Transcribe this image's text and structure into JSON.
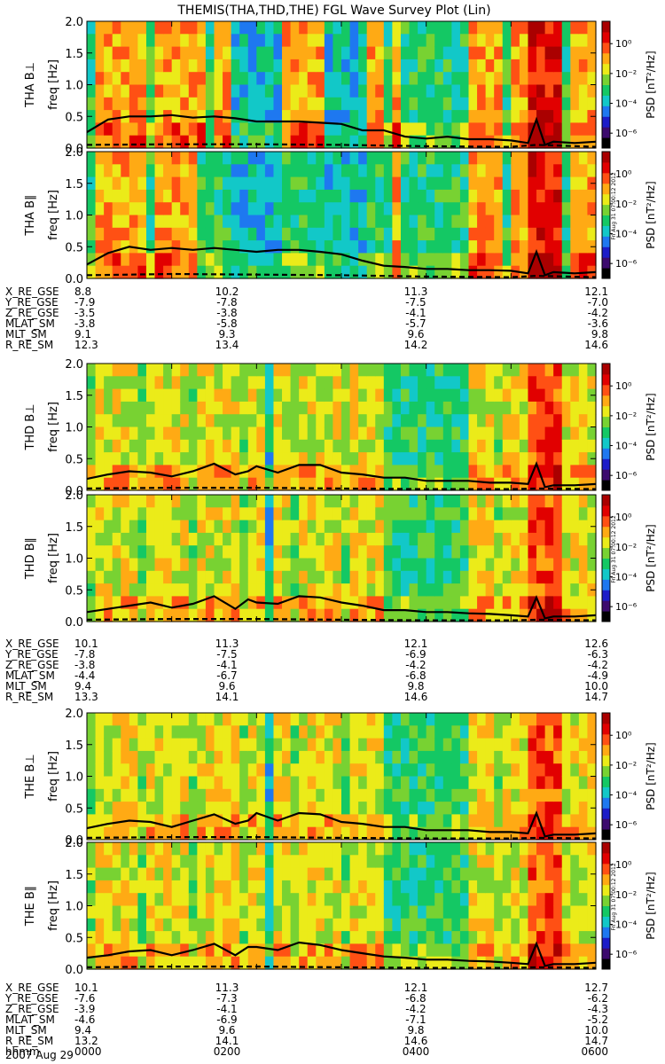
{
  "title": "THEMIS(THA,THD,THE) FGL Wave Survey Plot (Lin)",
  "stamp": "Fri Aug 31 07:00:12 2012",
  "colorbar": {
    "label": "PSD [nT²/Hz]",
    "ticks": [
      {
        "exp": 0,
        "text": "10⁰"
      },
      {
        "exp": -2,
        "text": "10⁻²"
      },
      {
        "exp": -4,
        "text": "10⁻⁴"
      },
      {
        "exp": -6,
        "text": "10⁻⁶"
      }
    ],
    "range_exp": [
      -7,
      1.5
    ],
    "colors": [
      "#000000",
      "#3c0a6e",
      "#1c1cc8",
      "#1e78f0",
      "#12c8c8",
      "#14c864",
      "#78d232",
      "#ebeb19",
      "#ffaa14",
      "#ff5014",
      "#e10000",
      "#aa0000"
    ]
  },
  "chart_data": [
    {
      "type": "heatmap",
      "probe": "THA",
      "component": "B⊥",
      "ylabel": "THA B⊥",
      "yunit": "freq [Hz]",
      "yticks": [
        "0.0",
        "0.5",
        "1.0",
        "1.5",
        "2.0"
      ],
      "ylim": [
        0,
        2.0
      ],
      "xlim_hhmm": [
        "0000",
        "0600"
      ],
      "series": [
        {
          "name": "f_cp",
          "style": "solid",
          "x_hours": [
            0,
            0.25,
            0.5,
            0.75,
            1.0,
            1.25,
            1.5,
            1.75,
            2.0,
            2.25,
            2.5,
            2.75,
            3.0,
            3.25,
            3.5,
            3.75,
            4.0,
            4.25,
            4.5,
            4.75,
            5.0,
            5.2,
            5.3,
            5.4,
            5.5,
            5.75,
            6.0
          ],
          "y_hz": [
            0.25,
            0.45,
            0.5,
            0.5,
            0.52,
            0.48,
            0.5,
            0.47,
            0.42,
            0.42,
            0.42,
            0.4,
            0.38,
            0.28,
            0.28,
            0.18,
            0.15,
            0.18,
            0.14,
            0.14,
            0.12,
            0.08,
            0.45,
            0.05,
            0.1,
            0.08,
            0.1
          ]
        },
        {
          "name": "f_lh",
          "style": "dashed",
          "x_hours": [
            0,
            1,
            2,
            3,
            4,
            5,
            5.3,
            6
          ],
          "y_hz": [
            0.05,
            0.06,
            0.06,
            0.05,
            0.03,
            0.02,
            0.05,
            0.02
          ]
        }
      ]
    },
    {
      "type": "heatmap",
      "probe": "THA",
      "component": "B∥",
      "ylabel": "THA B∥",
      "yunit": "freq [Hz]",
      "yticks": [
        "0.0",
        "0.5",
        "1.0",
        "1.5",
        "2.0"
      ],
      "ylim": [
        0,
        2.0
      ],
      "xlim_hhmm": [
        "0000",
        "0600"
      ],
      "series": [
        {
          "name": "f_cp",
          "style": "solid",
          "x_hours": [
            0,
            0.25,
            0.5,
            0.75,
            1.0,
            1.25,
            1.5,
            1.75,
            2.0,
            2.25,
            2.5,
            2.75,
            3.0,
            3.25,
            3.5,
            3.75,
            4.0,
            4.25,
            4.5,
            4.75,
            5.0,
            5.2,
            5.3,
            5.4,
            5.5,
            5.75,
            6.0
          ],
          "y_hz": [
            0.22,
            0.4,
            0.5,
            0.45,
            0.48,
            0.45,
            0.48,
            0.45,
            0.42,
            0.45,
            0.45,
            0.42,
            0.38,
            0.28,
            0.2,
            0.18,
            0.15,
            0.15,
            0.13,
            0.13,
            0.12,
            0.08,
            0.42,
            0.05,
            0.1,
            0.08,
            0.1
          ]
        },
        {
          "name": "f_lh",
          "style": "dashed",
          "x_hours": [
            0,
            1,
            2,
            3,
            4,
            5,
            5.3,
            6
          ],
          "y_hz": [
            0.05,
            0.07,
            0.06,
            0.05,
            0.03,
            0.02,
            0.04,
            0.02
          ]
        }
      ]
    },
    {
      "type": "heatmap",
      "probe": "THD",
      "component": "B⊥",
      "ylabel": "THD B⊥",
      "yunit": "freq [Hz]",
      "yticks": [
        "0.0",
        "0.5",
        "1.0",
        "1.5",
        "2.0"
      ],
      "ylim": [
        0,
        2.0
      ],
      "xlim_hhmm": [
        "0000",
        "0600"
      ],
      "series": [
        {
          "name": "f_cp",
          "style": "solid",
          "x_hours": [
            0,
            0.25,
            0.5,
            0.75,
            1.0,
            1.25,
            1.5,
            1.75,
            1.9,
            2.0,
            2.25,
            2.5,
            2.75,
            3.0,
            3.25,
            3.5,
            3.75,
            4.0,
            4.25,
            4.5,
            4.75,
            5.0,
            5.2,
            5.3,
            5.4,
            5.5,
            5.75,
            6.0
          ],
          "y_hz": [
            0.18,
            0.25,
            0.3,
            0.28,
            0.22,
            0.3,
            0.42,
            0.25,
            0.3,
            0.38,
            0.28,
            0.4,
            0.4,
            0.28,
            0.25,
            0.2,
            0.2,
            0.15,
            0.15,
            0.15,
            0.12,
            0.12,
            0.1,
            0.42,
            0.05,
            0.08,
            0.08,
            0.1
          ]
        },
        {
          "name": "f_lh",
          "style": "dashed",
          "x_hours": [
            0,
            1,
            2,
            3,
            4,
            5,
            5.3,
            6
          ],
          "y_hz": [
            0.03,
            0.04,
            0.04,
            0.03,
            0.02,
            0.02,
            0.03,
            0.02
          ]
        }
      ]
    },
    {
      "type": "heatmap",
      "probe": "THD",
      "component": "B∥",
      "ylabel": "THD B∥",
      "yunit": "freq [Hz]",
      "yticks": [
        "0.0",
        "0.5",
        "1.0",
        "1.5",
        "2.0"
      ],
      "ylim": [
        0,
        2.0
      ],
      "xlim_hhmm": [
        "0000",
        "0600"
      ],
      "series": [
        {
          "name": "f_cp",
          "style": "solid",
          "x_hours": [
            0,
            0.25,
            0.5,
            0.75,
            1.0,
            1.25,
            1.5,
            1.75,
            1.9,
            2.0,
            2.25,
            2.5,
            2.75,
            3.0,
            3.25,
            3.5,
            3.75,
            4.0,
            4.25,
            4.5,
            4.75,
            5.0,
            5.2,
            5.3,
            5.4,
            5.5,
            5.75,
            6.0
          ],
          "y_hz": [
            0.15,
            0.2,
            0.25,
            0.3,
            0.22,
            0.28,
            0.4,
            0.2,
            0.35,
            0.3,
            0.28,
            0.4,
            0.38,
            0.3,
            0.25,
            0.18,
            0.18,
            0.15,
            0.15,
            0.13,
            0.12,
            0.1,
            0.08,
            0.38,
            0.05,
            0.08,
            0.08,
            0.1
          ]
        },
        {
          "name": "f_lh",
          "style": "dashed",
          "x_hours": [
            0,
            1,
            2,
            3,
            4,
            5,
            5.3,
            6
          ],
          "y_hz": [
            0.03,
            0.04,
            0.04,
            0.03,
            0.02,
            0.02,
            0.03,
            0.02
          ]
        }
      ]
    },
    {
      "type": "heatmap",
      "probe": "THE",
      "component": "B⊥",
      "ylabel": "THE B⊥",
      "yunit": "freq [Hz]",
      "yticks": [
        "0.0",
        "0.5",
        "1.0",
        "1.5",
        "2.0"
      ],
      "ylim": [
        0,
        2.0
      ],
      "xlim_hhmm": [
        "0000",
        "0600"
      ],
      "series": [
        {
          "name": "f_cp",
          "style": "solid",
          "x_hours": [
            0,
            0.25,
            0.5,
            0.75,
            1.0,
            1.25,
            1.5,
            1.75,
            1.9,
            2.0,
            2.25,
            2.5,
            2.75,
            3.0,
            3.25,
            3.5,
            3.75,
            4.0,
            4.25,
            4.5,
            4.75,
            5.0,
            5.2,
            5.3,
            5.4,
            5.5,
            5.75,
            6.0
          ],
          "y_hz": [
            0.18,
            0.25,
            0.3,
            0.28,
            0.2,
            0.3,
            0.4,
            0.25,
            0.3,
            0.42,
            0.3,
            0.42,
            0.4,
            0.28,
            0.25,
            0.2,
            0.2,
            0.15,
            0.15,
            0.15,
            0.12,
            0.12,
            0.1,
            0.42,
            0.05,
            0.08,
            0.08,
            0.1
          ]
        },
        {
          "name": "f_lh",
          "style": "dashed",
          "x_hours": [
            0,
            1,
            2,
            3,
            4,
            5,
            5.3,
            6
          ],
          "y_hz": [
            0.03,
            0.04,
            0.04,
            0.03,
            0.02,
            0.02,
            0.03,
            0.02
          ]
        }
      ]
    },
    {
      "type": "heatmap",
      "probe": "THE",
      "component": "B∥",
      "ylabel": "THE B∥",
      "yunit": "freq [Hz]",
      "yticks": [
        "0.0",
        "0.5",
        "1.0",
        "1.5",
        "2.0"
      ],
      "ylim": [
        0,
        2.0
      ],
      "xlim_hhmm": [
        "0000",
        "0600"
      ],
      "series": [
        {
          "name": "f_cp",
          "style": "solid",
          "x_hours": [
            0,
            0.25,
            0.5,
            0.75,
            1.0,
            1.25,
            1.5,
            1.75,
            1.9,
            2.0,
            2.25,
            2.5,
            2.75,
            3.0,
            3.25,
            3.5,
            3.75,
            4.0,
            4.25,
            4.5,
            4.75,
            5.0,
            5.2,
            5.3,
            5.4,
            5.5,
            5.75,
            6.0
          ],
          "y_hz": [
            0.18,
            0.22,
            0.28,
            0.3,
            0.22,
            0.3,
            0.4,
            0.22,
            0.35,
            0.35,
            0.3,
            0.42,
            0.38,
            0.3,
            0.25,
            0.2,
            0.18,
            0.15,
            0.15,
            0.13,
            0.12,
            0.1,
            0.08,
            0.4,
            0.05,
            0.08,
            0.08,
            0.1
          ]
        },
        {
          "name": "f_lh",
          "style": "dashed",
          "x_hours": [
            0,
            1,
            2,
            3,
            4,
            5,
            5.3,
            6
          ],
          "y_hz": [
            0.03,
            0.04,
            0.04,
            0.03,
            0.02,
            0.02,
            0.03,
            0.02
          ]
        }
      ]
    }
  ],
  "orbit_tables": [
    {
      "probe": "THA",
      "rows": [
        {
          "label": "X_RE_GSE",
          "values": [
            "8.8",
            "10.2",
            "11.3",
            "12.1"
          ]
        },
        {
          "label": "Y_RE_GSE",
          "values": [
            "-7.9",
            "-7.8",
            "-7.5",
            "-7.0"
          ]
        },
        {
          "label": "Z_RE_GSE",
          "values": [
            "-3.5",
            "-3.8",
            "-4.1",
            "-4.2"
          ]
        },
        {
          "label": "MLAT_SM",
          "values": [
            "-3.8",
            "-5.8",
            "-5.7",
            "-3.6"
          ]
        },
        {
          "label": "MLT_SM",
          "values": [
            "9.1",
            "9.3",
            "9.6",
            "9.8"
          ]
        },
        {
          "label": "R_RE_SM",
          "values": [
            "12.3",
            "13.4",
            "14.2",
            "14.6"
          ]
        }
      ]
    },
    {
      "probe": "THD",
      "rows": [
        {
          "label": "X_RE_GSE",
          "values": [
            "10.1",
            "11.3",
            "12.1",
            "12.6"
          ]
        },
        {
          "label": "Y_RE_GSE",
          "values": [
            "-7.8",
            "-7.5",
            "-6.9",
            "-6.3"
          ]
        },
        {
          "label": "Z_RE_GSE",
          "values": [
            "-3.8",
            "-4.1",
            "-4.2",
            "-4.2"
          ]
        },
        {
          "label": "MLAT_SM",
          "values": [
            "-4.4",
            "-6.7",
            "-6.8",
            "-4.9"
          ]
        },
        {
          "label": "MLT_SM",
          "values": [
            "9.4",
            "9.6",
            "9.8",
            "10.0"
          ]
        },
        {
          "label": "R_RE_SM",
          "values": [
            "13.3",
            "14.1",
            "14.6",
            "14.7"
          ]
        }
      ]
    },
    {
      "probe": "THE",
      "rows": [
        {
          "label": "X_RE_GSE",
          "values": [
            "10.1",
            "11.3",
            "12.1",
            "12.7"
          ]
        },
        {
          "label": "Y_RE_GSE",
          "values": [
            "-7.6",
            "-7.3",
            "-6.8",
            "-6.2"
          ]
        },
        {
          "label": "Z_RE_GSE",
          "values": [
            "-3.9",
            "-4.1",
            "-4.2",
            "-4.3"
          ]
        },
        {
          "label": "MLAT_SM",
          "values": [
            "-4.6",
            "-6.9",
            "-7.1",
            "-5.2"
          ]
        },
        {
          "label": "MLT_SM",
          "values": [
            "9.4",
            "9.6",
            "9.8",
            "10.0"
          ]
        },
        {
          "label": "R_RE_SM",
          "values": [
            "13.2",
            "14.1",
            "14.6",
            "14.7"
          ]
        },
        {
          "label": "hhmm",
          "values": [
            "0000",
            "0200",
            "0400",
            "0600"
          ]
        }
      ]
    }
  ],
  "date_label": "2007 Aug 29"
}
